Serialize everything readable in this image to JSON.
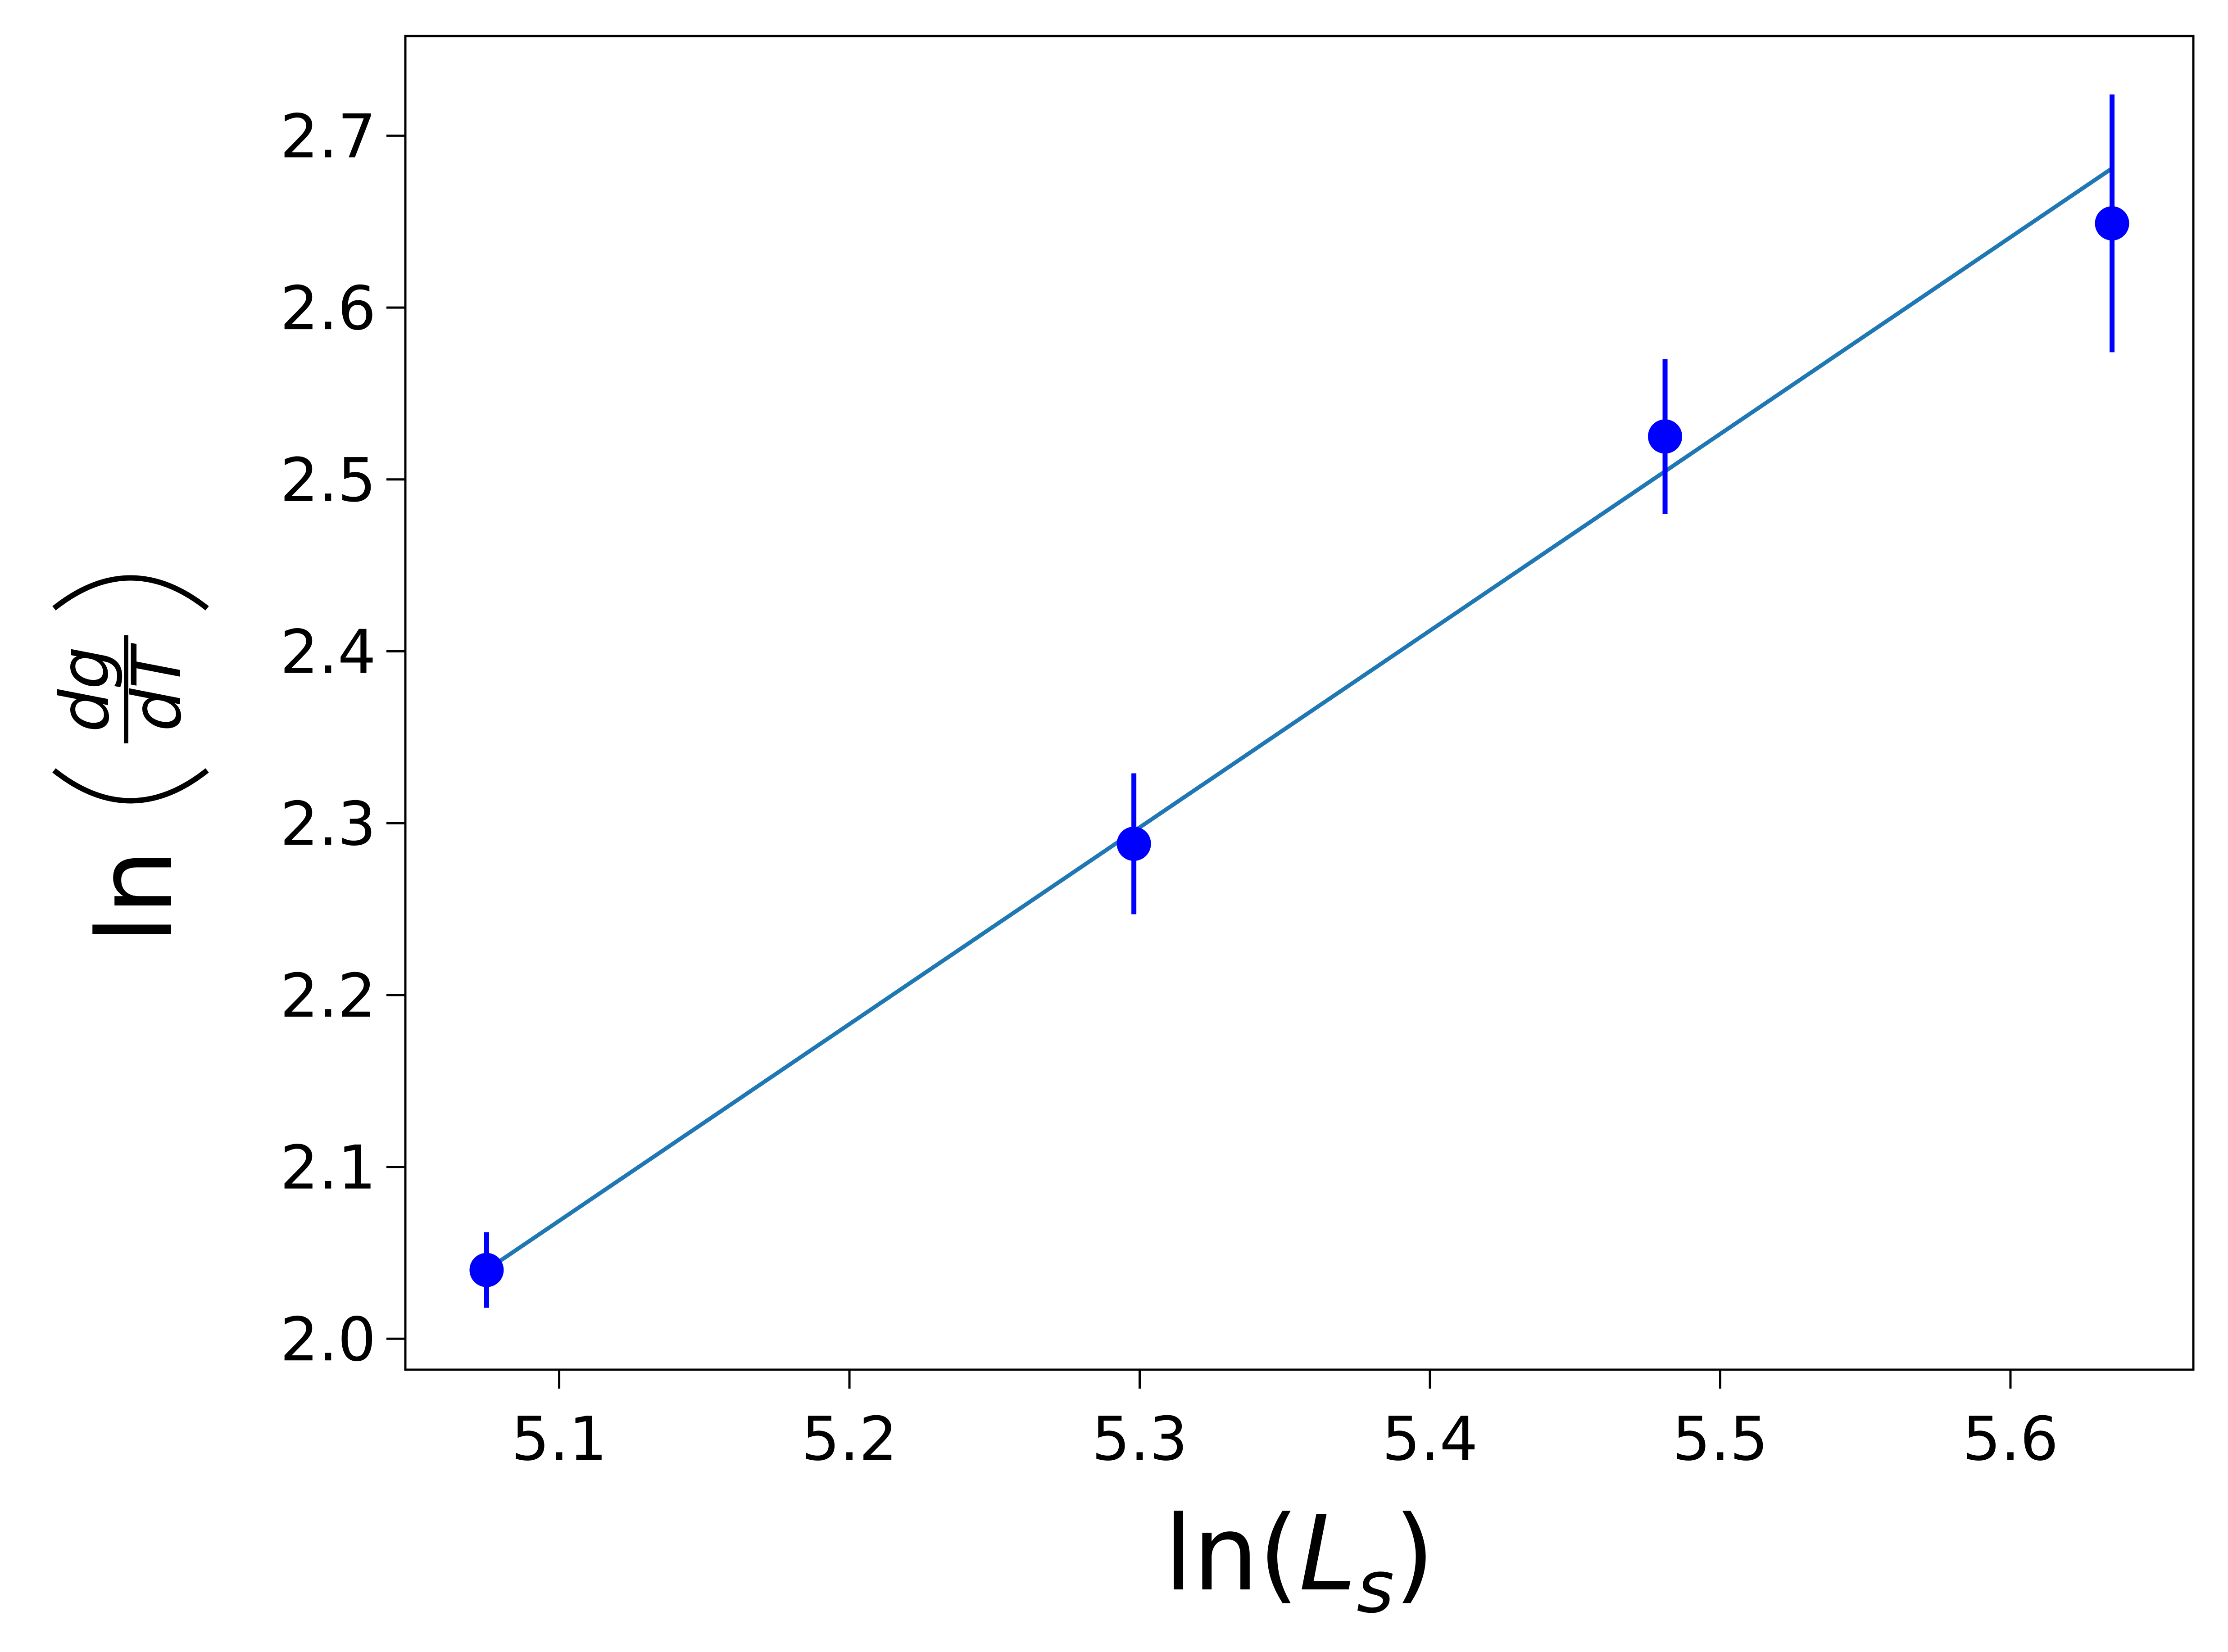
{
  "chart_data": {
    "type": "scatter",
    "title": "",
    "xlabel": {
      "base": "ln(",
      "italic": "L",
      "sub": "s",
      "close": ")"
    },
    "ylabel": {
      "base": "ln",
      "numerator": "dg",
      "denominator": "dT"
    },
    "xlim": [
      5.047,
      5.663
    ],
    "ylim": [
      1.982,
      2.758
    ],
    "x_ticks": [
      "5.1",
      "5.2",
      "5.3",
      "5.4",
      "5.5",
      "5.6"
    ],
    "x_tick_values": [
      5.1,
      5.2,
      5.3,
      5.4,
      5.5,
      5.6
    ],
    "y_ticks": [
      "2.0",
      "2.1",
      "2.2",
      "2.3",
      "2.4",
      "2.5",
      "2.6",
      "2.7"
    ],
    "y_tick_values": [
      2.0,
      2.1,
      2.2,
      2.3,
      2.4,
      2.5,
      2.6,
      2.7
    ],
    "grid": false,
    "series": [
      {
        "kind": "errorbar",
        "color": "#0000ff",
        "x": [
          5.075,
          5.298,
          5.481,
          5.635
        ],
        "y": [
          2.04,
          2.288,
          2.525,
          2.649
        ],
        "yerr": [
          0.022,
          0.041,
          0.045,
          0.075
        ]
      },
      {
        "kind": "fit-line",
        "color": "#1f77b4",
        "x": [
          5.075,
          5.635
        ],
        "y": [
          2.04,
          2.681
        ]
      }
    ]
  }
}
